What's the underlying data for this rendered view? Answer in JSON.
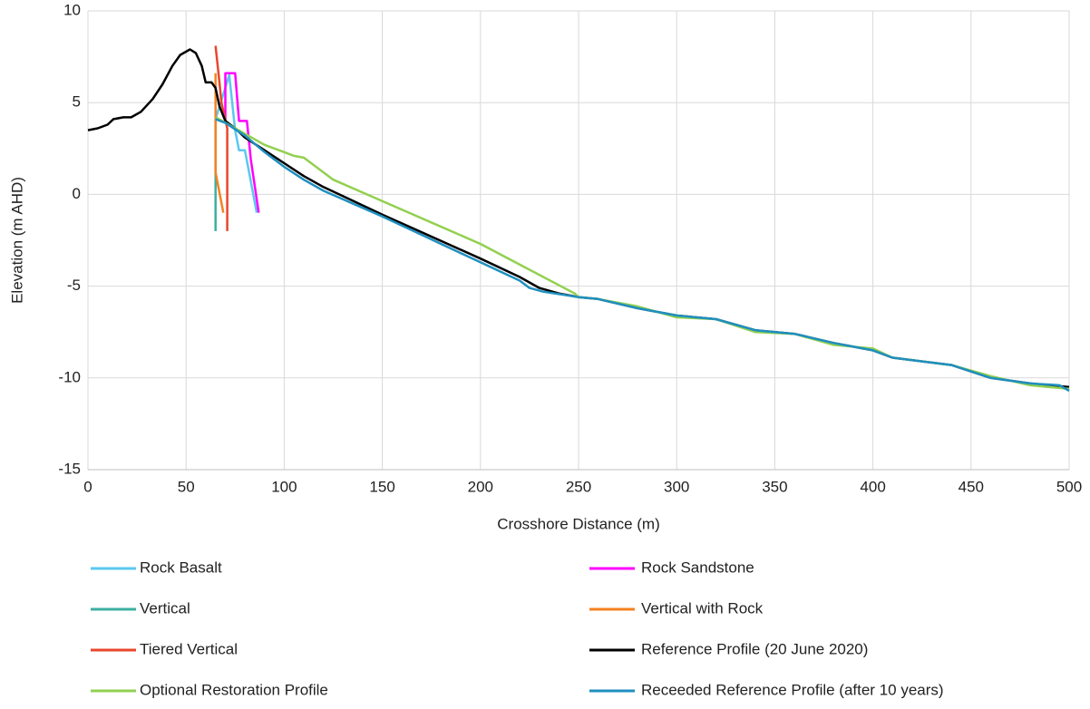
{
  "chart_data": {
    "type": "line",
    "xlabel": "Crosshore Distance (m)",
    "ylabel": "Elevation (m AHD)",
    "xlim": [
      0,
      500
    ],
    "ylim": [
      -15,
      10
    ],
    "xticks": [
      0,
      50,
      100,
      150,
      200,
      250,
      300,
      350,
      400,
      450,
      500
    ],
    "yticks": [
      -15,
      -10,
      -5,
      0,
      5,
      10
    ],
    "grid": true,
    "legend": "bottom",
    "series": [
      {
        "name": "Rock Basalt",
        "color": "#5bc8f0",
        "x": [
          65,
          72,
          75,
          77,
          80,
          86
        ],
        "values": [
          4.1,
          6.5,
          3.5,
          2.4,
          2.4,
          -1.0
        ]
      },
      {
        "name": "Rock Sandstone",
        "color": "#ff00ff",
        "x": [
          70,
          70,
          75,
          77,
          81,
          83,
          87
        ],
        "values": [
          4.0,
          6.6,
          6.6,
          4.0,
          4.0,
          1.9,
          -1.0
        ]
      },
      {
        "name": "Vertical",
        "color": "#3cb0a0",
        "x": [
          65,
          65
        ],
        "values": [
          4.2,
          -2.0
        ]
      },
      {
        "name": "Vertical with Rock",
        "color": "#f5821f",
        "x": [
          65,
          65,
          69
        ],
        "values": [
          6.6,
          1.2,
          -1.0
        ]
      },
      {
        "name": "Tiered Vertical",
        "color": "#e8472b",
        "x": [
          65,
          67,
          68,
          71,
          71
        ],
        "values": [
          8.1,
          6.1,
          5.0,
          3.6,
          -2.0
        ]
      },
      {
        "name": "Reference Profile (20 June 2020)",
        "color": "#000000",
        "x": [
          0,
          5,
          10,
          13,
          18,
          22,
          27,
          33,
          38,
          43,
          47,
          52,
          55,
          58,
          60,
          63,
          65,
          67,
          70,
          75,
          80,
          90,
          100,
          110,
          120,
          130,
          150,
          200,
          220,
          230,
          240,
          250,
          260,
          280,
          300,
          320,
          340,
          360,
          380,
          400,
          410,
          440,
          460,
          480,
          500
        ],
        "values": [
          3.5,
          3.6,
          3.8,
          4.1,
          4.2,
          4.2,
          4.5,
          5.2,
          6.0,
          7.0,
          7.6,
          7.9,
          7.7,
          7.0,
          6.1,
          6.1,
          5.8,
          4.8,
          4.0,
          3.6,
          3.1,
          2.4,
          1.7,
          1.0,
          0.4,
          -0.1,
          -1.1,
          -3.5,
          -4.5,
          -5.1,
          -5.4,
          -5.6,
          -5.7,
          -6.2,
          -6.6,
          -6.8,
          -7.4,
          -7.6,
          -8.1,
          -8.5,
          -8.9,
          -9.3,
          -10.0,
          -10.3,
          -10.5
        ]
      },
      {
        "name": "Optional Restoration Profile",
        "color": "#92d050",
        "x": [
          65,
          75,
          90,
          100,
          105,
          110,
          115,
          125,
          140,
          200,
          248,
          250,
          260,
          280,
          300,
          320,
          340,
          360,
          380,
          400,
          410,
          440,
          460,
          480,
          500
        ],
        "values": [
          4.2,
          3.6,
          2.7,
          2.3,
          2.1,
          2.0,
          1.6,
          0.8,
          0.1,
          -2.7,
          -5.4,
          -5.6,
          -5.7,
          -6.1,
          -6.7,
          -6.8,
          -7.5,
          -7.6,
          -8.2,
          -8.4,
          -8.9,
          -9.3,
          -9.9,
          -10.4,
          -10.6
        ]
      },
      {
        "name": "Receeded Reference Profile (after 10 years)",
        "color": "#1f8fbf",
        "x": [
          65,
          70,
          80,
          90,
          100,
          110,
          120,
          150,
          200,
          220,
          225,
          232,
          250,
          260,
          280,
          300,
          320,
          340,
          360,
          380,
          400,
          410,
          440,
          460,
          480,
          495,
          500
        ],
        "values": [
          4.1,
          3.9,
          3.2,
          2.3,
          1.5,
          0.8,
          0.2,
          -1.2,
          -3.7,
          -4.7,
          -5.1,
          -5.3,
          -5.6,
          -5.7,
          -6.2,
          -6.6,
          -6.8,
          -7.4,
          -7.6,
          -8.1,
          -8.5,
          -8.9,
          -9.3,
          -10.0,
          -10.3,
          -10.4,
          -10.7
        ]
      }
    ]
  }
}
